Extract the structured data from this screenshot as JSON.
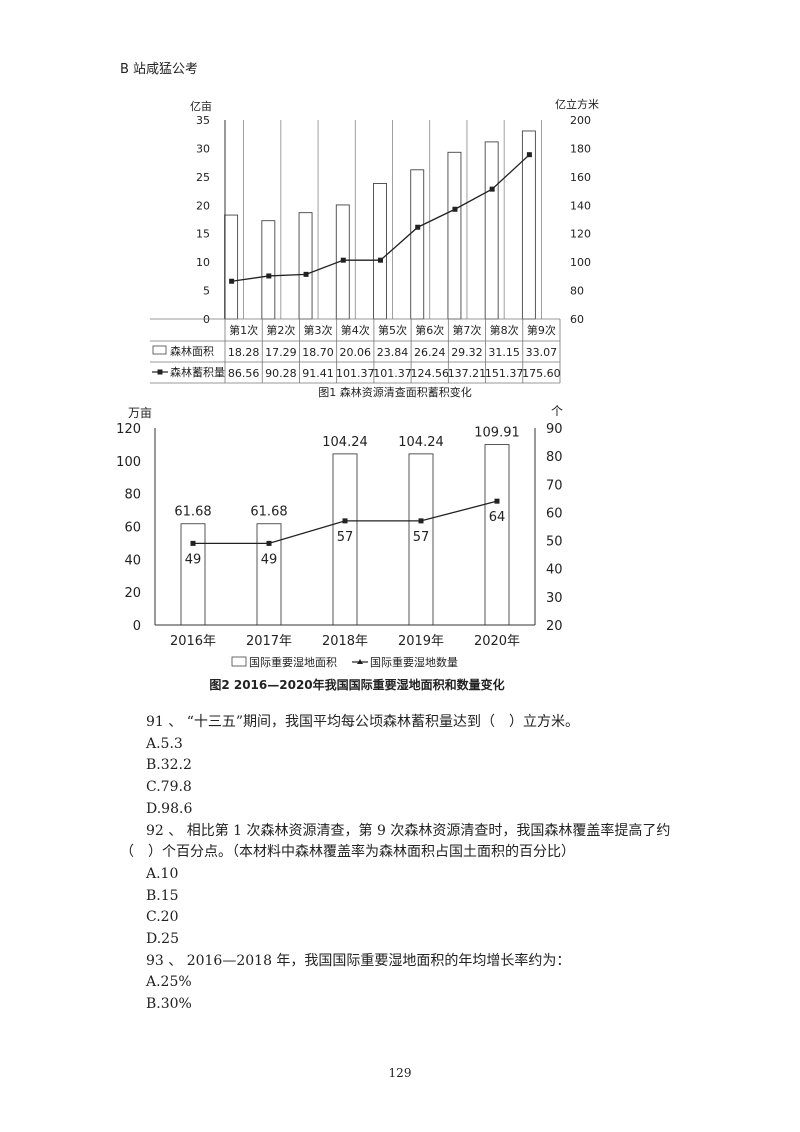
{
  "header": "B 站咸猛公考",
  "page_number": "129",
  "chart_data": [
    {
      "type": "bar+line",
      "categories": [
        "第1次",
        "第2次",
        "第3次",
        "第4次",
        "第5次",
        "第6次",
        "第7次",
        "第8次",
        "第9次"
      ],
      "series": [
        {
          "name": "森林面积",
          "type": "bar",
          "axis": "left",
          "values": [
            18.28,
            17.29,
            18.7,
            20.06,
            23.84,
            26.24,
            29.32,
            31.15,
            33.07
          ],
          "labels": [
            "18.28",
            "17.29",
            "18.70",
            "20.06",
            "23.84",
            "26.24",
            "29.32",
            "31.15",
            "33.07"
          ]
        },
        {
          "name": "森林蓄积量",
          "type": "line",
          "axis": "right",
          "values": [
            86.56,
            90.28,
            91.41,
            101.37,
            101.37,
            124.56,
            137.21,
            151.37,
            175.6
          ],
          "labels": [
            "86.56",
            "90.28",
            "91.41",
            "101.37",
            "101.37",
            "124.56",
            "137.21",
            "151.37",
            "175.60"
          ]
        }
      ],
      "left_axis": {
        "unit": "亿亩",
        "min": 0,
        "max": 35,
        "ticks": [
          "0",
          "5",
          "10",
          "15",
          "20",
          "25",
          "30",
          "35"
        ]
      },
      "right_axis": {
        "unit": "亿立方米",
        "min": 60,
        "max": 200,
        "ticks": [
          "60",
          "80",
          "100",
          "120",
          "140",
          "160",
          "180",
          "200"
        ]
      },
      "caption": "图1 森林资源清查面积蓄积变化"
    },
    {
      "type": "bar+line",
      "categories": [
        "2016年",
        "2017年",
        "2018年",
        "2019年",
        "2020年"
      ],
      "series": [
        {
          "name": "国际重要湿地面积",
          "type": "bar",
          "axis": "left",
          "values": [
            61.68,
            61.68,
            104.24,
            104.24,
            109.91
          ],
          "labels": [
            "61.68",
            "61.68",
            "104.24",
            "104.24",
            "109.91"
          ]
        },
        {
          "name": "国际重要湿地数量",
          "type": "line",
          "axis": "right",
          "values": [
            49,
            49,
            57,
            57,
            64
          ],
          "labels": [
            "49",
            "49",
            "57",
            "57",
            "64"
          ]
        }
      ],
      "left_axis": {
        "unit": "万亩",
        "min": 0,
        "max": 120,
        "ticks": [
          "0",
          "20",
          "40",
          "60",
          "80",
          "100",
          "120"
        ]
      },
      "right_axis": {
        "unit": "个",
        "min": 20,
        "max": 90,
        "ticks": [
          "20",
          "30",
          "40",
          "50",
          "60",
          "70",
          "80",
          "90"
        ]
      },
      "caption": "图2 2016—2020年我国国际重要湿地面积和数量变化"
    }
  ],
  "questions": [
    {
      "lines": [
        "91 、 “十三五”期间，我国平均每公顷森林蓄积量达到（　）立方米。"
      ],
      "options": [
        "A.5.3",
        "B.32.2",
        "C.79.8",
        "D.98.6"
      ]
    },
    {
      "lines": [
        "92 、 相比第 1 次森林资源清查，第 9 次森林资源清查时，我国森林覆盖率提高了约",
        "（　）个百分点。（本材料中森林覆盖率为森林面积占国土面积的百分比）"
      ],
      "options": [
        "A.10",
        "B.15",
        "C.20",
        "D.25"
      ]
    },
    {
      "lines": [
        "93 、 2016—2018 年，我国国际重要湿地面积的年均增长率约为："
      ],
      "options": [
        "A.25%",
        "B.30%"
      ]
    }
  ]
}
